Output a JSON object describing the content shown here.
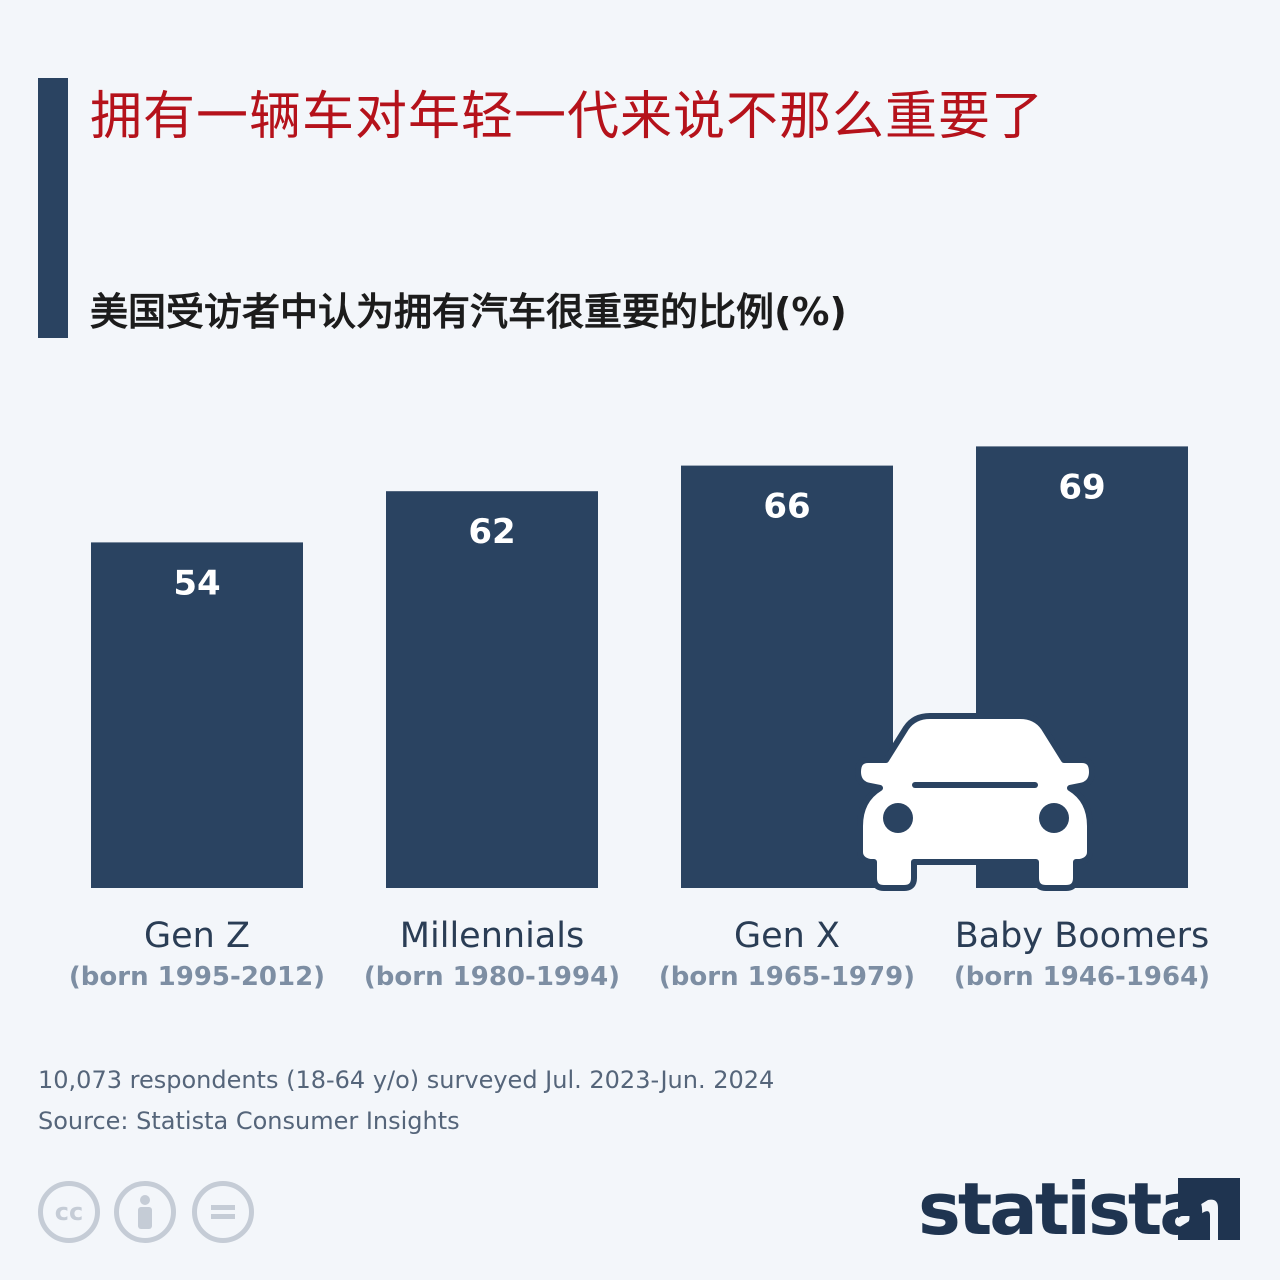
{
  "title": "拥有一辆车对年轻一代来说不那么重要了",
  "subtitle": "美国受访者中认为拥有汽车很重要的比例(%)",
  "colors": {
    "title": "#b5121b",
    "bar": "#2a4361",
    "background": "#f3f6fa",
    "category_label": "#2a3d55",
    "sublabel": "#7d8ea3",
    "bar_value": "#ffffff"
  },
  "chart_data": {
    "type": "bar",
    "title": "拥有一辆车对年轻一代来说不那么重要了",
    "subtitle": "美国受访者中认为拥有汽车很重要的比例(%)",
    "categories": [
      "Gen Z",
      "Millennials",
      "Gen X",
      "Baby Boomers"
    ],
    "sublabels": [
      "(born 1995-2012)",
      "(born 1980-1994)",
      "(born 1965-1979)",
      "(born 1946-1964)"
    ],
    "values": [
      54,
      62,
      66,
      69
    ],
    "ylim": [
      0,
      100
    ],
    "grid": false,
    "legend": "none",
    "data_labels": "inside-top"
  },
  "notes": {
    "survey": "10,073 respondents (18-64 y/o) surveyed Jul. 2023-Jun. 2024",
    "source": "Source: Statista Consumer Insights"
  },
  "license_icons": [
    "cc-icon",
    "attribution-icon",
    "no-derivatives-icon"
  ],
  "logo": {
    "text": "statista",
    "icon": "statista-logo-icon"
  },
  "decoration": {
    "icon": "car-icon"
  }
}
